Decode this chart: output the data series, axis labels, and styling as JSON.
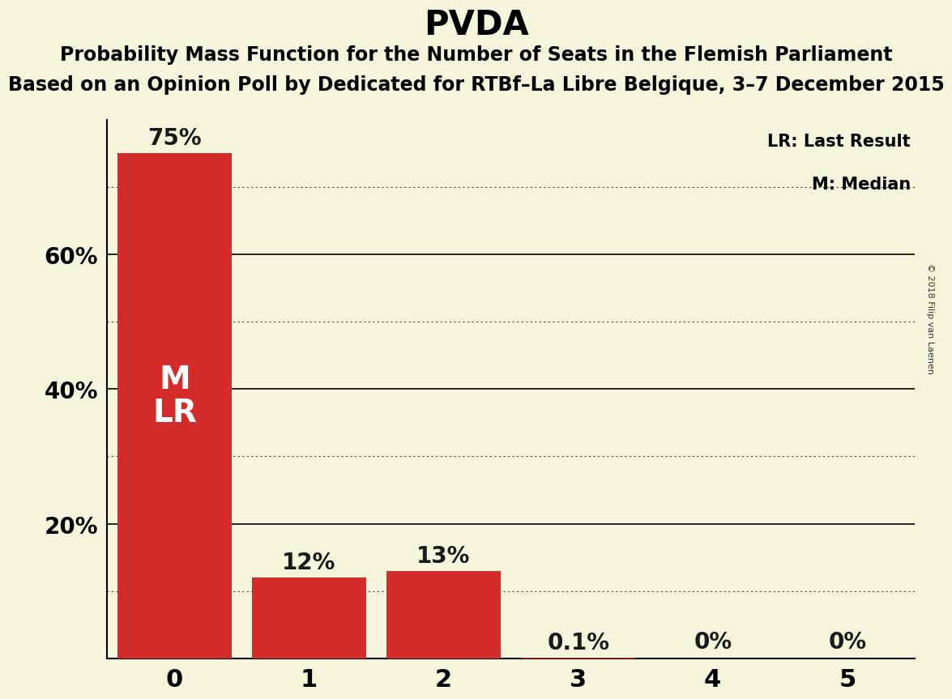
{
  "title": "PVDA",
  "subtitle1": "Probability Mass Function for the Number of Seats in the Flemish Parliament",
  "subtitle2": "Based on an Opinion Poll by Dedicated for RTBf–La Libre Belgique, 3–7 December 2015",
  "copyright": "© 2018 Filip van Laenen",
  "categories": [
    0,
    1,
    2,
    3,
    4,
    5
  ],
  "values": [
    0.75,
    0.12,
    0.13,
    0.001,
    0.0,
    0.0
  ],
  "bar_color": "#D42B2B",
  "background_color": "#F5F5DC",
  "bar_labels": [
    "75%",
    "12%",
    "13%",
    "0.1%",
    "0%",
    "0%"
  ],
  "bar_label_color": "#1A1A1A",
  "median_seat": 0,
  "last_result_seat": 0,
  "legend_lr": "LR: Last Result",
  "legend_m": "M: Median",
  "ylim": [
    0,
    0.8
  ],
  "ylabel_ticks": [
    0.2,
    0.4,
    0.6
  ],
  "ylabel_labels": [
    "20%",
    "40%",
    "60%"
  ],
  "solid_grid_lines": [
    0.2,
    0.4,
    0.6
  ],
  "dotted_grid_lines": [
    0.1,
    0.3,
    0.5,
    0.7
  ],
  "title_fontsize": 30,
  "subtitle_fontsize": 17,
  "bar_label_fontsize": 20,
  "tick_fontsize": 20,
  "legend_fontsize": 15,
  "ml_fontsize": 28
}
